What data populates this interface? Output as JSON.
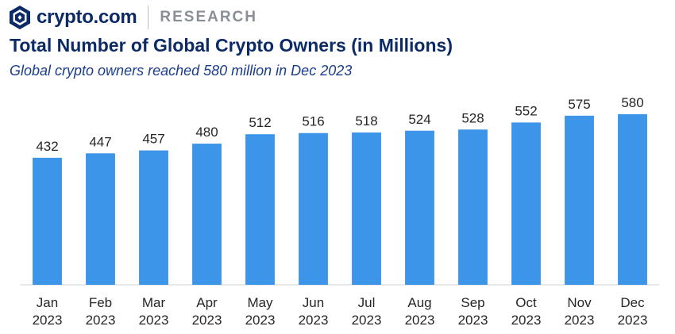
{
  "header": {
    "brand": "crypto.com",
    "section": "RESEARCH"
  },
  "colors": {
    "bar": "#3d95ea",
    "title": "#0b2a66",
    "subtitle": "#1a3d8c"
  },
  "chart_data": {
    "type": "bar",
    "title": "Total Number of Global Crypto Owners (in Millions)",
    "subtitle": "Global crypto owners reached 580 million in Dec 2023",
    "xlabel": "",
    "ylabel": "",
    "categories": [
      [
        "Jan",
        "2023"
      ],
      [
        "Feb",
        "2023"
      ],
      [
        "Mar",
        "2023"
      ],
      [
        "Apr",
        "2023"
      ],
      [
        "May",
        "2023"
      ],
      [
        "Jun",
        "2023"
      ],
      [
        "Jul",
        "2023"
      ],
      [
        "Aug",
        "2023"
      ],
      [
        "Sep",
        "2023"
      ],
      [
        "Oct",
        "2023"
      ],
      [
        "Nov",
        "2023"
      ],
      [
        "Dec",
        "2023"
      ]
    ],
    "values": [
      432,
      447,
      457,
      480,
      512,
      516,
      518,
      524,
      528,
      552,
      575,
      580
    ],
    "ylim": [
      0,
      600
    ],
    "grid": false,
    "legend": "none"
  }
}
